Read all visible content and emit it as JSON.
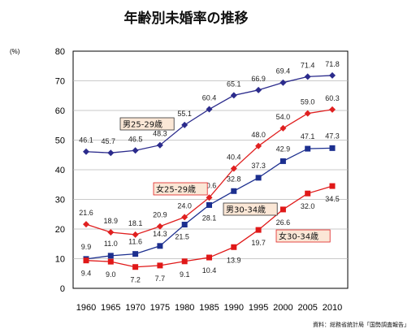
{
  "chart_data": {
    "type": "line",
    "title": "年齢別未婚率の推移",
    "ylabel": "(%)",
    "source": "資料：総務省統計局「国勢調査報告」",
    "ylim": [
      0,
      80
    ],
    "yticks": [
      0,
      10,
      20,
      30,
      40,
      50,
      60,
      70,
      80
    ],
    "x": [
      "1960",
      "1965",
      "1970",
      "1975",
      "1980",
      "1985",
      "1990",
      "1995",
      "2000",
      "2005",
      "2010"
    ],
    "grid": true,
    "series": [
      {
        "name": "男25-29歳",
        "color": "#2b2b8c",
        "marker": "diamond",
        "values": [
          46.1,
          45.7,
          46.5,
          48.3,
          55.1,
          60.4,
          65.1,
          66.9,
          69.4,
          71.4,
          71.8
        ]
      },
      {
        "name": "女25-29歳",
        "color": "#e02020",
        "marker": "diamond",
        "values": [
          21.6,
          18.9,
          18.1,
          20.9,
          24.0,
          30.6,
          40.4,
          48.0,
          54.0,
          59.0,
          60.3
        ]
      },
      {
        "name": "男30-34歳",
        "color": "#1c2f8f",
        "marker": "square",
        "values": [
          9.9,
          11.0,
          11.6,
          14.3,
          21.5,
          28.1,
          32.8,
          37.3,
          42.9,
          47.1,
          47.3
        ]
      },
      {
        "name": "女30-34歳",
        "color": "#e01818",
        "marker": "square",
        "values": [
          9.4,
          9.0,
          7.2,
          7.7,
          9.1,
          10.4,
          13.9,
          19.7,
          26.6,
          32.0,
          34.5
        ]
      }
    ]
  }
}
